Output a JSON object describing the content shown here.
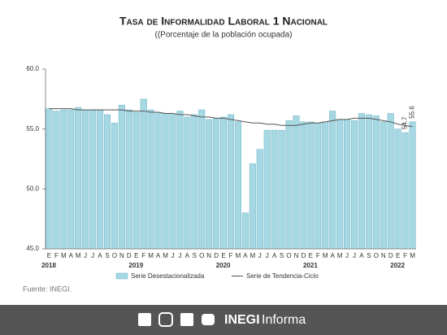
{
  "chart_data": {
    "type": "bar",
    "title": "Tasa de Informalidad Laboral 1 Nacional",
    "subtitle": "((Porcentaje de la población ocupada)",
    "source": "Fuente: INEGI.",
    "brand": [
      "INEGI",
      "Informa"
    ],
    "categories": [
      "E",
      "F",
      "M",
      "A",
      "M",
      "J",
      "J",
      "A",
      "S",
      "O",
      "N",
      "D",
      "E",
      "F",
      "M",
      "A",
      "M",
      "J",
      "J",
      "A",
      "S",
      "O",
      "N",
      "D",
      "E",
      "F",
      "M",
      "A",
      "M",
      "J",
      "J",
      "A",
      "S",
      "O",
      "N",
      "D",
      "E",
      "F",
      "M",
      "A",
      "M",
      "J",
      "J",
      "A",
      "S",
      "O",
      "N",
      "D",
      "E",
      "F",
      "M"
    ],
    "years": [
      "2018",
      "2019",
      "2020",
      "2021",
      "2022"
    ],
    "series": [
      {
        "name": "Serie Desestacionalizada",
        "color": "#a6d8e3",
        "values": [
          56.7,
          56.5,
          56.6,
          56.6,
          56.8,
          56.6,
          56.6,
          56.6,
          56.2,
          55.5,
          57.0,
          56.6,
          56.4,
          57.5,
          56.6,
          56.4,
          56.3,
          56.3,
          56.5,
          56.0,
          56.2,
          56.6,
          55.8,
          55.9,
          56.0,
          56.2,
          55.6,
          48.0,
          52.1,
          53.3,
          54.9,
          54.9,
          54.9,
          55.7,
          56.1,
          55.6,
          55.6,
          55.5,
          55.6,
          56.5,
          55.8,
          55.8,
          55.7,
          56.3,
          56.2,
          56.1,
          55.6,
          56.3,
          55.0,
          54.7,
          55.6
        ],
        "value_labels": [
          null,
          null,
          null,
          null,
          null,
          null,
          null,
          null,
          null,
          null,
          null,
          null,
          null,
          null,
          null,
          null,
          null,
          null,
          null,
          null,
          null,
          null,
          null,
          null,
          null,
          null,
          null,
          null,
          null,
          null,
          null,
          null,
          null,
          null,
          null,
          null,
          null,
          null,
          null,
          null,
          null,
          null,
          null,
          null,
          null,
          null,
          null,
          null,
          null,
          "54.7",
          "55.6"
        ]
      },
      {
        "name": "Serie de Tendencia-Ciclo",
        "type": "line",
        "color": "#555555",
        "values": [
          56.7,
          56.7,
          56.7,
          56.7,
          56.6,
          56.6,
          56.6,
          56.6,
          56.6,
          56.6,
          56.6,
          56.5,
          56.5,
          56.5,
          56.4,
          56.4,
          56.3,
          56.3,
          56.2,
          56.2,
          56.1,
          56.0,
          56.0,
          55.9,
          55.9,
          55.8,
          55.7,
          55.6,
          55.5,
          55.5,
          55.4,
          55.4,
          55.3,
          55.3,
          55.3,
          55.4,
          55.5,
          55.5,
          55.6,
          55.7,
          55.8,
          55.8,
          55.9,
          55.9,
          55.9,
          55.8,
          55.7,
          55.6,
          55.4,
          55.3,
          55.2
        ]
      }
    ],
    "ylim": [
      45,
      60
    ],
    "yticks": [
      {
        "value": 45,
        "label": "45.0"
      },
      {
        "value": 50,
        "label": "50.0"
      },
      {
        "value": 55,
        "label": "55.0"
      },
      {
        "value": 60,
        "label": "60.0"
      }
    ]
  }
}
